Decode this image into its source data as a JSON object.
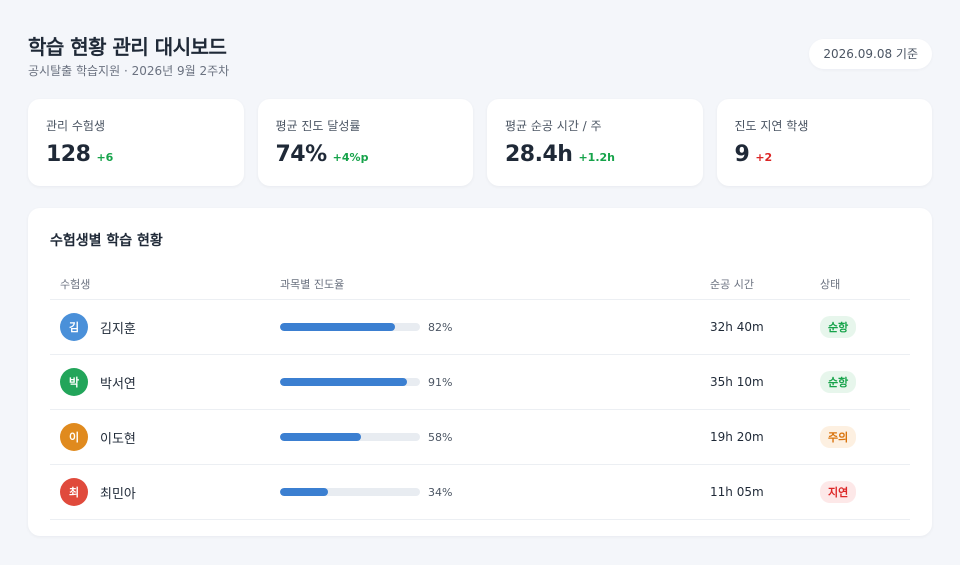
{
  "header": {
    "title": "학습 현황 관리 대시보드",
    "subtitle": "공시탈출 학습지원 · 2026년 9월 2주차",
    "date": "2026.09.08 기준"
  },
  "kpis": [
    {
      "label": "관리 수험생",
      "value": "128",
      "delta": "+6",
      "trend": "up"
    },
    {
      "label": "평균 진도 달성률",
      "value": "74%",
      "delta": "+4%p",
      "trend": "up"
    },
    {
      "label": "평균 순공 시간 / 주",
      "value": "28.4h",
      "delta": "+1.2h",
      "trend": "up"
    },
    {
      "label": "진도 지연 학생",
      "value": "9",
      "delta": "+2",
      "trend": "down"
    }
  ],
  "panel": {
    "title": "수험생별 학습 현황",
    "columns": {
      "student": "수험생",
      "progress": "과목별 진도율",
      "time": "순공 시간",
      "status": "상태"
    },
    "rows": [
      {
        "initial": "김",
        "name": "김지훈",
        "progress": 82,
        "progress_label": "82%",
        "time": "32h 40m",
        "status": "순항",
        "avatar_color": "#4a90d9",
        "status_color": "#16a34a",
        "status_bg": "#e7f6ec"
      },
      {
        "initial": "박",
        "name": "박서연",
        "progress": 91,
        "progress_label": "91%",
        "time": "35h 10m",
        "status": "순항",
        "avatar_color": "#22a55a",
        "status_color": "#16a34a",
        "status_bg": "#e7f6ec"
      },
      {
        "initial": "이",
        "name": "이도현",
        "progress": 58,
        "progress_label": "58%",
        "time": "19h 20m",
        "status": "주의",
        "avatar_color": "#e08a1e",
        "status_color": "#d9730d",
        "status_bg": "#fdf0e1"
      },
      {
        "initial": "최",
        "name": "최민아",
        "progress": 34,
        "progress_label": "34%",
        "time": "11h 05m",
        "status": "지연",
        "avatar_color": "#e04a3c",
        "status_color": "#dc2626",
        "status_bg": "#fde8e8"
      }
    ]
  }
}
